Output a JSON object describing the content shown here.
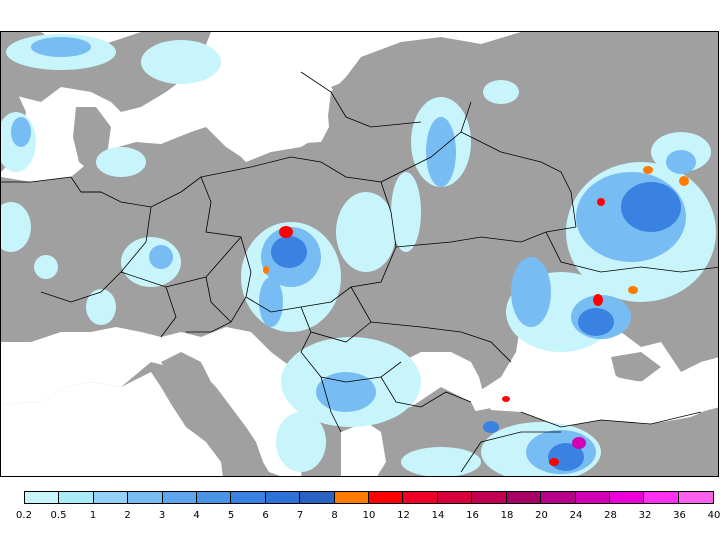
{
  "map": {
    "land_color": "#a0a0a0",
    "sea_color": "#ffffff",
    "border_color": "#000000"
  },
  "legend": {
    "labels": [
      "0.2",
      "0.5",
      "1",
      "2",
      "3",
      "4",
      "5",
      "6",
      "7",
      "8",
      "10",
      "12",
      "14",
      "16",
      "18",
      "20",
      "24",
      "28",
      "32",
      "36",
      "40"
    ],
    "colors": [
      "#c8f4fc",
      "#a8ecf8",
      "#92d2f8",
      "#78bcf4",
      "#60a6ee",
      "#4a94e8",
      "#3a82e2",
      "#2e72d8",
      "#2a62c2",
      "#ff7a00",
      "#ff0000",
      "#ee0028",
      "#d8003c",
      "#c00050",
      "#a40066",
      "#b4008a",
      "#d000b4",
      "#ec00d8",
      "#ff30f0",
      "#ff60ec"
    ]
  }
}
